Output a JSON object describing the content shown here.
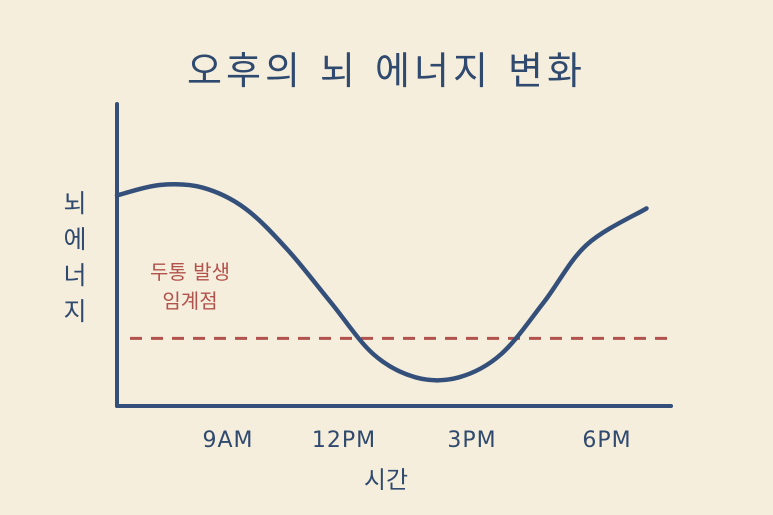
{
  "chart_data": {
    "type": "line",
    "title": "오후의 뇌 에너지 변화",
    "ylabel": "뇌 에너지",
    "xlabel": "시간",
    "x_ticks": [
      "9AM",
      "12PM",
      "3PM",
      "6PM"
    ],
    "x": [
      7,
      8,
      9,
      10,
      11,
      12,
      13,
      14,
      15,
      16,
      17,
      18,
      19.4
    ],
    "series": [
      {
        "values": [
          0.81,
          0.85,
          0.84,
          0.76,
          0.6,
          0.4,
          0.2,
          0.11,
          0.11,
          0.2,
          0.4,
          0.62,
          0.76
        ]
      }
    ],
    "xlim": [
      7,
      20
    ],
    "ylim": [
      0,
      1
    ],
    "threshold": {
      "value": 0.26,
      "label_line1": "두통 발생",
      "label_line2": "임계점"
    },
    "grid": false,
    "legend": "none",
    "colors": {
      "line": "#34507a",
      "threshold": "#b1524c",
      "axis": "#34507a",
      "background": "#f6eedc"
    }
  }
}
